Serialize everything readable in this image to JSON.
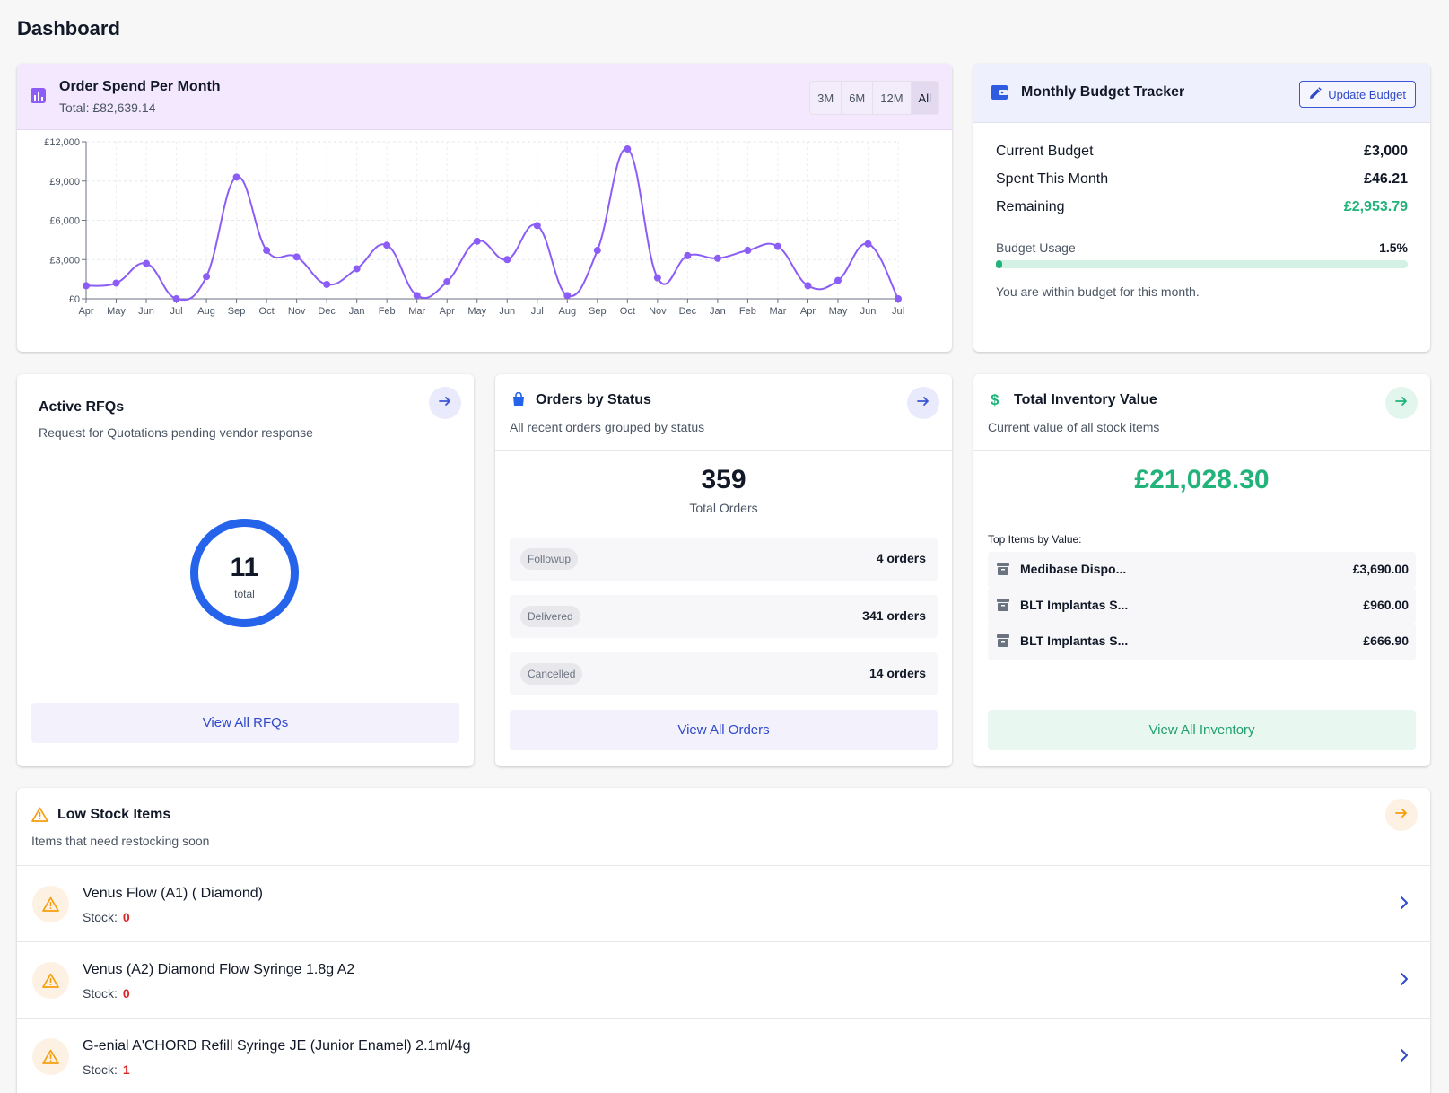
{
  "page": {
    "title": "Dashboard"
  },
  "spend": {
    "title": "Order Spend Per Month",
    "total": "Total: £82,639.14",
    "ranges": [
      "3M",
      "6M",
      "12M",
      "All"
    ],
    "active_range": "All"
  },
  "chart_data": {
    "type": "line",
    "title": "Order Spend Per Month",
    "xlabel": "",
    "ylabel": "",
    "categories": [
      "Apr",
      "May",
      "Jun",
      "Jul",
      "Aug",
      "Sep",
      "Oct",
      "Nov",
      "Dec",
      "Jan",
      "Feb",
      "Mar",
      "Apr",
      "May",
      "Jun",
      "Jul",
      "Aug",
      "Sep",
      "Oct",
      "Nov",
      "Dec",
      "Jan",
      "Feb",
      "Mar",
      "Apr",
      "May",
      "Jun",
      "Jul"
    ],
    "values": [
      1000,
      1200,
      2700,
      0,
      1700,
      9300,
      3700,
      3200,
      1100,
      2300,
      4100,
      250,
      1300,
      4400,
      3000,
      5600,
      250,
      3700,
      11450,
      1600,
      3300,
      3100,
      3700,
      4000,
      1000,
      1400,
      4200,
      0
    ],
    "ylim": [
      0,
      12000
    ],
    "yticks": [
      "£0",
      "£3,000",
      "£6,000",
      "£9,000",
      "£12,000"
    ],
    "ytick_values": [
      0,
      3000,
      6000,
      9000,
      12000
    ],
    "grid": true,
    "color": "#8b5cf6"
  },
  "budget": {
    "title": "Monthly Budget Tracker",
    "update_label": "Update Budget",
    "rows": [
      {
        "label": "Current Budget",
        "value": "£3,000"
      },
      {
        "label": "Spent This Month",
        "value": "£46.21"
      },
      {
        "label": "Remaining",
        "value": "£2,953.79"
      }
    ],
    "usage_label": "Budget Usage",
    "usage_pct": "1.5%",
    "usage_fraction": 0.015,
    "note": "You are within budget for this month."
  },
  "rfq": {
    "title": "Active RFQs",
    "subtitle": "Request for Quotations pending vendor response",
    "count": "11",
    "count_label": "total",
    "button": "View All RFQs"
  },
  "orders": {
    "title": "Orders by Status",
    "subtitle": "All recent orders grouped by status",
    "total": "359",
    "total_label": "Total Orders",
    "statuses": [
      {
        "label": "Followup",
        "count": "4 orders"
      },
      {
        "label": "Delivered",
        "count": "341 orders"
      },
      {
        "label": "Cancelled",
        "count": "14 orders"
      }
    ],
    "button": "View All Orders"
  },
  "inventory": {
    "title": "Total Inventory Value",
    "subtitle": "Current value of all stock items",
    "value": "£21,028.30",
    "top_label": "Top Items by Value:",
    "items": [
      {
        "name": "Medibase Dispo...",
        "price": "£3,690.00"
      },
      {
        "name": "BLT Implantas S...",
        "price": "£960.00"
      },
      {
        "name": "BLT Implantas S...",
        "price": "£666.90"
      }
    ],
    "button": "View All Inventory"
  },
  "low_stock": {
    "title": "Low Stock Items",
    "subtitle": "Items that need restocking soon",
    "stock_label": "Stock:",
    "items": [
      {
        "name": "Venus Flow (A1) ( Diamond)",
        "stock": "0"
      },
      {
        "name": "Venus (A2) Diamond Flow Syringe 1.8g A2",
        "stock": "0"
      },
      {
        "name": "G-enial A'CHORD Refill Syringe JE (Junior Enamel) 2.1ml/4g",
        "stock": "1"
      }
    ]
  }
}
